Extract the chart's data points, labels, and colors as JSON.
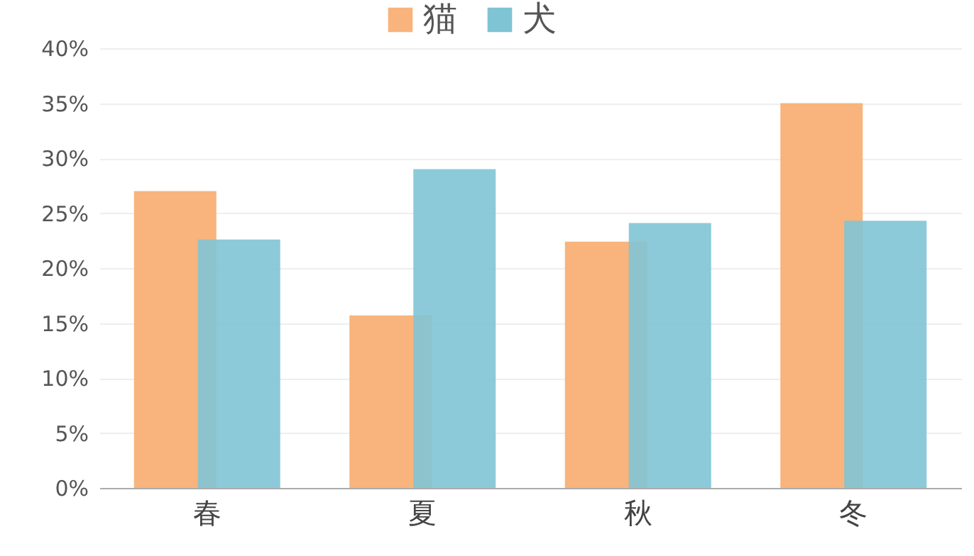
{
  "chart_data": {
    "type": "bar",
    "categories": [
      "春",
      "夏",
      "秋",
      "冬"
    ],
    "series": [
      {
        "name": "猫",
        "color": "#f8b47c",
        "values": [
          27,
          15.7,
          22.4,
          35
        ]
      },
      {
        "name": "犬",
        "color": "#7fc4d5",
        "values": [
          22.6,
          29,
          24.1,
          24.3
        ]
      }
    ],
    "ylim": [
      0,
      40
    ],
    "yticks": [
      {
        "value": 0,
        "label": "0%"
      },
      {
        "value": 5,
        "label": "5%"
      },
      {
        "value": 10,
        "label": "10%"
      },
      {
        "value": 15,
        "label": "15%"
      },
      {
        "value": 20,
        "label": "20%"
      },
      {
        "value": 25,
        "label": "25%"
      },
      {
        "value": 30,
        "label": "30%"
      },
      {
        "value": 35,
        "label": "35%"
      },
      {
        "value": 40,
        "label": "40%"
      }
    ],
    "grid": "y",
    "legend": "top"
  }
}
